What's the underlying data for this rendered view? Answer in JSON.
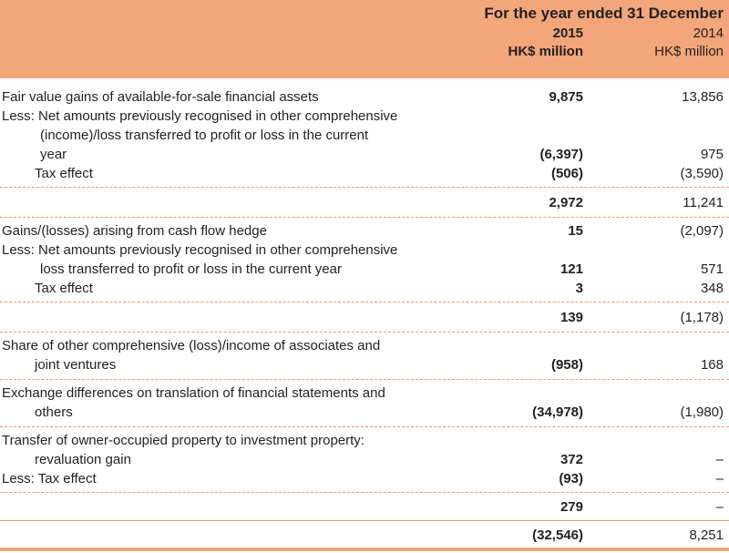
{
  "header": {
    "period": "For the year ended 31 December",
    "col1": [
      "2015",
      "HK$ million"
    ],
    "col2": [
      "2014",
      "HK$ million"
    ]
  },
  "rows": [
    {
      "lines": [
        "Fair value gains of available-for-sale financial assets"
      ],
      "v2015": "9,875",
      "v2014": "13,856"
    },
    {
      "lines": [
        "Less: Net amounts previously recognised in other comprehensive",
        "(income)/loss transferred to profit or loss in the current",
        "year"
      ],
      "v2015": "(6,397)",
      "v2014": "975"
    },
    {
      "lines": [
        "Tax effect"
      ],
      "v2015": "(506)",
      "v2014": "(3,590)"
    },
    {
      "lines": [
        ""
      ],
      "v2015": "2,972",
      "v2014": "11,241"
    },
    {
      "lines": [
        "Gains/(losses) arising from cash flow hedge"
      ],
      "v2015": "15",
      "v2014": "(2,097)"
    },
    {
      "lines": [
        "Less: Net amounts previously recognised in other comprehensive",
        "loss transferred to profit or loss in the current year"
      ],
      "v2015": "121",
      "v2014": "571"
    },
    {
      "lines": [
        "Tax effect"
      ],
      "v2015": "3",
      "v2014": "348"
    },
    {
      "lines": [
        ""
      ],
      "v2015": "139",
      "v2014": "(1,178)"
    },
    {
      "lines": [
        "Share of other comprehensive (loss)/income of associates and",
        "joint ventures"
      ],
      "v2015": "(958)",
      "v2014": "168"
    },
    {
      "lines": [
        "Exchange differences on translation of financial statements and",
        "others"
      ],
      "v2015": "(34,978)",
      "v2014": "(1,980)"
    },
    {
      "lines": [
        "Transfer of owner-occupied property to investment property:",
        "revaluation gain"
      ],
      "v2015": "372",
      "v2014": "–"
    },
    {
      "lines": [
        "Less: Tax effect"
      ],
      "v2015": "(93)",
      "v2014": "–"
    },
    {
      "lines": [
        ""
      ],
      "v2015": "279",
      "v2014": "–"
    },
    {
      "lines": [
        ""
      ],
      "v2015": "(32,546)",
      "v2014": "8,251"
    }
  ]
}
